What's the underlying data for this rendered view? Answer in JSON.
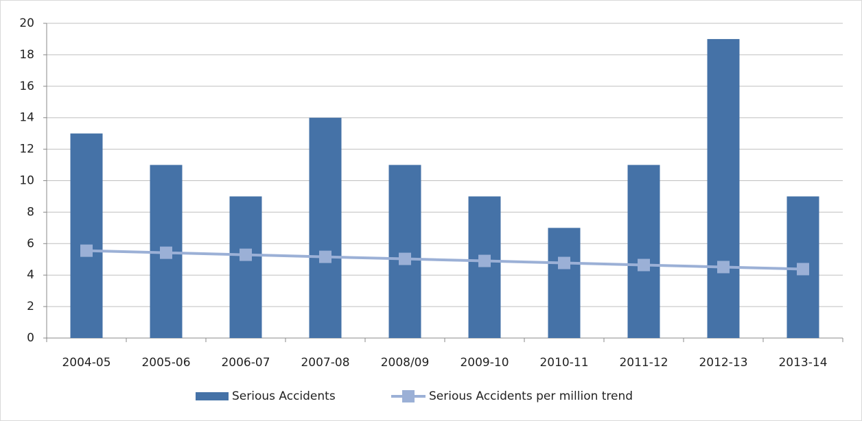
{
  "chart_data": {
    "type": "bar",
    "categories": [
      "2004-05",
      "2005-06",
      "2006-07",
      "2007-08",
      "2008/09",
      "2009-10",
      "2010-11",
      "2011-12",
      "2012-13",
      "2013-14"
    ],
    "series": [
      {
        "name": "Serious Accidents",
        "type": "bar",
        "color": "#4572a7",
        "values": [
          13,
          11,
          9,
          14,
          11,
          9,
          7,
          11,
          19,
          9
        ]
      },
      {
        "name": "Serious Accidents per million trend",
        "type": "line",
        "color": "#9bb0d6",
        "values": [
          5.55,
          5.42,
          5.29,
          5.16,
          5.03,
          4.9,
          4.77,
          4.64,
          4.51,
          4.38
        ]
      }
    ],
    "ylim": [
      0,
      20
    ],
    "yticks": [
      0,
      2,
      4,
      6,
      8,
      10,
      12,
      14,
      16,
      18,
      20
    ],
    "grid": true,
    "legend": "bottom"
  }
}
